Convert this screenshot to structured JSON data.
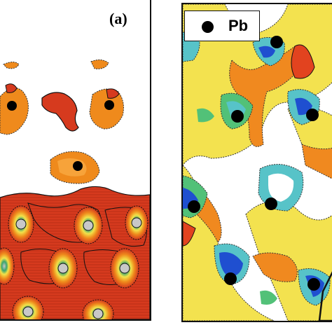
{
  "panel_a": {
    "label": "(a)",
    "colors": {
      "dark_red": "#d63a1e",
      "orange": "#ef8a1c",
      "light_orange": "#f7a33a",
      "yellow": "#f2e24a",
      "green": "#3aa46e",
      "blue": "#2f57c9",
      "grey": "#c8c8c8",
      "atom": "#000000"
    }
  },
  "panel_b": {
    "legend": {
      "symbol": "black-dot",
      "label": "Pb"
    },
    "colors": {
      "yellow": "#f3e24f",
      "orange": "#f0891f",
      "red": "#e2431f",
      "cyan": "#57c3c8",
      "green": "#52c178",
      "blue": "#1f4fd0",
      "atom": "#000000"
    }
  }
}
